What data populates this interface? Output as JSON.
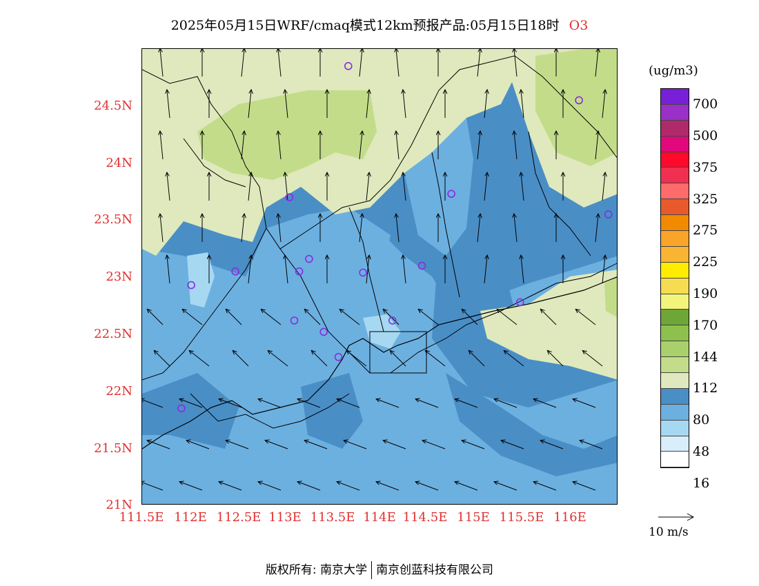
{
  "title": {
    "main": "2025年05月15日WRF/cmaq模式12km预报产品:05月15日18时",
    "species": "O3"
  },
  "colors": {
    "levels": [
      "#ffffff",
      "#d8eefa",
      "#a6d8f2",
      "#6cb0e0",
      "#4a8ec6",
      "#dfe9bd",
      "#c3dc8a",
      "#a9d06a",
      "#8ec04e",
      "#6ea638",
      "#f3f57a",
      "#f5dc50",
      "#ffec00",
      "#f8b432",
      "#f9a52a",
      "#f28a00",
      "#e85a2c",
      "#ff6a6a",
      "#f03050",
      "#ff0a2a",
      "#e0087a",
      "#b02a6a",
      "#9a30c8",
      "#7820d8"
    ],
    "border": "#000000",
    "station": "#8a2be2",
    "axis_text": "#e03030"
  },
  "axes": {
    "y_labels": [
      "24.5N",
      "24N",
      "23.5N",
      "23N",
      "22.5N",
      "22N",
      "21.5N",
      "21N"
    ],
    "x_labels": [
      "111.5E",
      "112E",
      "112.5E",
      "113E",
      "113.5E",
      "114E",
      "114.5E",
      "115E",
      "115.5E",
      "116E"
    ]
  },
  "colorbar": {
    "unit": "(ug/m3)",
    "labels": [
      "700",
      "500",
      "375",
      "325",
      "275",
      "225",
      "190",
      "170",
      "144",
      "112",
      "80",
      "48",
      "16"
    ]
  },
  "vector_reference": {
    "label": "10 m/s"
  },
  "footer": {
    "left": "版权所有: 南京大学",
    "right": "南京创蓝科技有限公司"
  },
  "chart_data": {
    "type": "heatmap",
    "title": "2025年05月15日WRF/cmaq模式12km预报产品:05月15日18时 O3",
    "xlabel": "",
    "ylabel": "",
    "xlim": [
      111.5,
      116.35
    ],
    "ylim": [
      21.0,
      25.0
    ],
    "x_ticks": [
      "111.5E",
      "112E",
      "112.5E",
      "113E",
      "113.5E",
      "114E",
      "114.5E",
      "115E",
      "115.5E",
      "116E"
    ],
    "y_ticks": [
      "21N",
      "21.5N",
      "22N",
      "22.5N",
      "23N",
      "23.5N",
      "24N",
      "24.5N"
    ],
    "legend_unit": "(ug/m3)",
    "legend_levels": [
      16,
      48,
      80,
      112,
      144,
      170,
      190,
      225,
      275,
      325,
      375,
      500,
      700
    ],
    "stations": [
      {
        "lon": 113.6,
        "lat": 24.85
      },
      {
        "lon": 115.95,
        "lat": 24.55
      },
      {
        "lon": 113.0,
        "lat": 23.7
      },
      {
        "lon": 114.65,
        "lat": 23.73
      },
      {
        "lon": 116.25,
        "lat": 23.55
      },
      {
        "lon": 112.45,
        "lat": 23.05
      },
      {
        "lon": 113.1,
        "lat": 23.05
      },
      {
        "lon": 113.2,
        "lat": 23.16
      },
      {
        "lon": 113.75,
        "lat": 23.04
      },
      {
        "lon": 114.35,
        "lat": 23.1
      },
      {
        "lon": 112.0,
        "lat": 22.93
      },
      {
        "lon": 115.35,
        "lat": 22.78
      },
      {
        "lon": 113.05,
        "lat": 22.62
      },
      {
        "lon": 113.35,
        "lat": 22.52
      },
      {
        "lon": 114.05,
        "lat": 22.62
      },
      {
        "lon": 113.5,
        "lat": 22.3
      },
      {
        "lon": 111.9,
        "lat": 21.85
      }
    ]
  }
}
